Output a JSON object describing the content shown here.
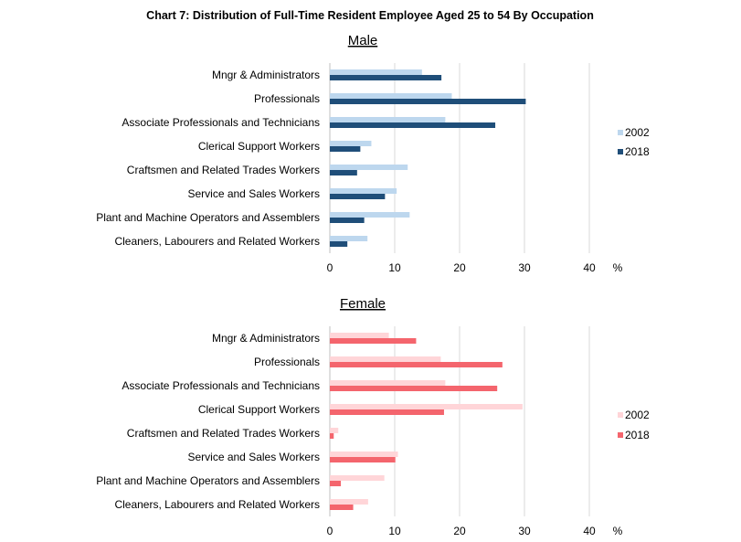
{
  "chart_title": "Chart 7: Distribution of Full-Time Resident Employee Aged 25 to 54 By Occupation",
  "chart_data": [
    {
      "type": "bar",
      "orientation": "horizontal",
      "title": "Male",
      "categories": [
        "Mngr & Administrators",
        "Professionals",
        "Associate Professionals and Technicians",
        "Clerical Support Workers",
        "Craftsmen and Related Trades Workers",
        "Service and Sales Workers",
        "Plant and Machine Operators and Assemblers",
        "Cleaners, Labourers and Related Workers"
      ],
      "series": [
        {
          "name": "2002",
          "color": "#bdd7ee",
          "values": [
            14.2,
            18.8,
            17.8,
            6.4,
            12.0,
            10.3,
            12.3,
            5.8
          ]
        },
        {
          "name": "2018",
          "color": "#1f4e79",
          "values": [
            17.2,
            30.2,
            25.5,
            4.7,
            4.2,
            8.5,
            5.3,
            2.7
          ]
        }
      ],
      "xlim": [
        0,
        40
      ],
      "xticks": [
        "0",
        "10",
        "20",
        "30",
        "40"
      ],
      "unit_label": "%",
      "legend_position": "right"
    },
    {
      "type": "bar",
      "orientation": "horizontal",
      "title": "Female",
      "categories": [
        "Mngr & Administrators",
        "Professionals",
        "Associate Professionals and Technicians",
        "Clerical Support Workers",
        "Craftsmen and Related Trades Workers",
        "Service and Sales Workers",
        "Plant and Machine Operators and Assemblers",
        "Cleaners, Labourers and Related Workers"
      ],
      "series": [
        {
          "name": "2002",
          "color": "#ffd5d8",
          "values": [
            9.1,
            17.1,
            17.8,
            29.7,
            1.3,
            10.5,
            8.4,
            5.9
          ]
        },
        {
          "name": "2018",
          "color": "#f4656d",
          "values": [
            13.3,
            26.6,
            25.8,
            17.6,
            0.6,
            10.1,
            1.7,
            3.6
          ]
        }
      ],
      "xlim": [
        0,
        40
      ],
      "xticks": [
        "0",
        "10",
        "20",
        "30",
        "40"
      ],
      "unit_label": "%",
      "legend_position": "right"
    }
  ]
}
